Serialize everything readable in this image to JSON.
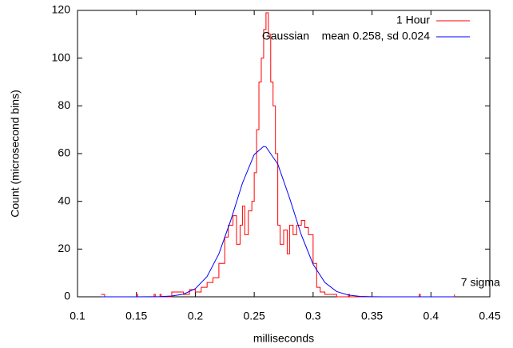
{
  "chart_data": {
    "type": "line",
    "xlabel": "milliseconds",
    "ylabel": "Count (microsecond bins)",
    "xlim": [
      0.1,
      0.45
    ],
    "xticks": [
      0.1,
      0.15,
      0.2,
      0.25,
      0.3,
      0.35,
      0.4,
      0.45
    ],
    "ylim": [
      0,
      120
    ],
    "yticks": [
      0,
      20,
      40,
      60,
      80,
      100,
      120
    ],
    "grid": false,
    "legend": "top-right",
    "annotation": {
      "text": "7 sigma",
      "x": 0.42,
      "y": 0
    },
    "series": [
      {
        "name": "1 Hour",
        "color": "#ff0000",
        "step": true,
        "x": [
          0.12,
          0.123,
          0.15,
          0.151,
          0.165,
          0.166,
          0.17,
          0.171,
          0.18,
          0.185,
          0.19,
          0.195,
          0.2,
          0.205,
          0.21,
          0.215,
          0.22,
          0.225,
          0.228,
          0.232,
          0.235,
          0.238,
          0.24,
          0.242,
          0.245,
          0.248,
          0.25,
          0.252,
          0.254,
          0.256,
          0.258,
          0.26,
          0.262,
          0.264,
          0.266,
          0.268,
          0.27,
          0.272,
          0.275,
          0.278,
          0.28,
          0.283,
          0.286,
          0.29,
          0.293,
          0.296,
          0.3,
          0.303,
          0.306,
          0.31,
          0.32,
          0.33,
          0.331,
          0.35,
          0.39,
          0.391,
          0.42
        ],
        "values": [
          1,
          0,
          1,
          0,
          1,
          0,
          1,
          0,
          2,
          2,
          1,
          3,
          2,
          4,
          6,
          8,
          14,
          25,
          30,
          34,
          22,
          30,
          38,
          26,
          36,
          40,
          52,
          70,
          90,
          100,
          112,
          119,
          110,
          90,
          80,
          60,
          30,
          22,
          28,
          18,
          30,
          26,
          30,
          32,
          29,
          26,
          14,
          4,
          2,
          1,
          0,
          1,
          0,
          0,
          1,
          0,
          1
        ]
      },
      {
        "name": "Gaussian    mean 0.258, sd 0.024",
        "color": "#0000ff",
        "step": false,
        "x": [
          0.12,
          0.15,
          0.17,
          0.18,
          0.19,
          0.2,
          0.21,
          0.22,
          0.23,
          0.24,
          0.25,
          0.258,
          0.26,
          0.27,
          0.28,
          0.29,
          0.3,
          0.31,
          0.32,
          0.33,
          0.34,
          0.35,
          0.36,
          0.42
        ],
        "values": [
          0,
          0,
          0.08,
          0.32,
          1.1,
          3.4,
          8.5,
          18.0,
          31.9,
          47.6,
          59.6,
          63,
          62.8,
          55.6,
          41.4,
          25.9,
          13.6,
          6.0,
          2.2,
          0.7,
          0.18,
          0.04,
          0,
          0
        ]
      }
    ]
  }
}
